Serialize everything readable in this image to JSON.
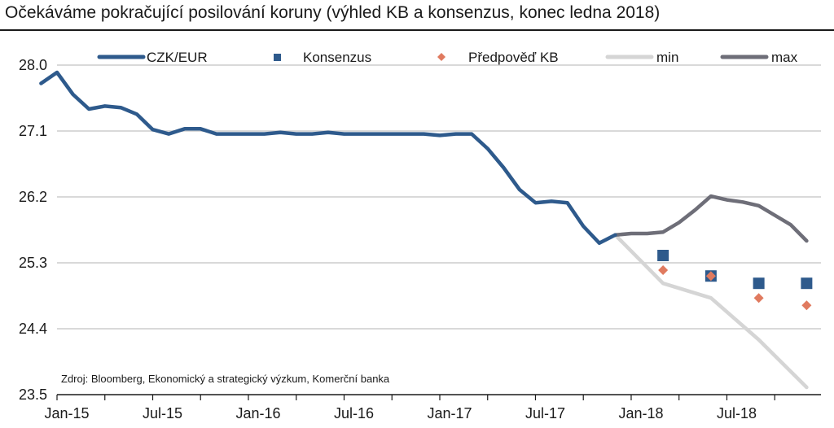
{
  "chart_data": {
    "type": "line",
    "title": "Očekáváme pokračující posilování koruny (výhled KB a konsenzus, konec ledna 2018)",
    "source": "Zdroj: Bloomberg, Ekonomický a strategický výzkum, Komerční banka",
    "xlabel": "",
    "ylabel": "",
    "ylim": [
      23.5,
      28.0
    ],
    "yticks": [
      "28.0",
      "27.1",
      "26.2",
      "25.3",
      "24.4",
      "23.5"
    ],
    "xticks": [
      "Jan-15",
      "Jul-15",
      "Jan-16",
      "Jul-16",
      "Jan-17",
      "Jul-17",
      "Jan-18",
      "Jul-18"
    ],
    "grid": true,
    "legend_position": "top",
    "colors": {
      "czk": "#2e5a8c",
      "konsenzus": "#2e5a8c",
      "predpoved": "#e07a5f",
      "min": "#d5d5d5",
      "max": "#6e6e78",
      "grid": "#d9d9d9"
    },
    "series": [
      {
        "name": "CZK/EUR",
        "style": "line",
        "x": [
          "2014-12",
          "2015-01",
          "2015-02",
          "2015-03",
          "2015-04",
          "2015-05",
          "2015-06",
          "2015-07",
          "2015-08",
          "2015-09",
          "2015-10",
          "2015-11",
          "2015-12",
          "2016-01",
          "2016-02",
          "2016-03",
          "2016-04",
          "2016-05",
          "2016-06",
          "2016-07",
          "2016-08",
          "2016-09",
          "2016-10",
          "2016-11",
          "2016-12",
          "2017-01",
          "2017-02",
          "2017-03",
          "2017-04",
          "2017-05",
          "2017-06",
          "2017-07",
          "2017-08",
          "2017-09",
          "2017-10",
          "2017-11",
          "2017-12"
        ],
        "values": [
          27.75,
          27.9,
          27.6,
          27.4,
          27.44,
          27.42,
          27.33,
          27.12,
          27.06,
          27.13,
          27.13,
          27.06,
          27.06,
          27.06,
          27.06,
          27.08,
          27.06,
          27.06,
          27.08,
          27.06,
          27.06,
          27.06,
          27.06,
          27.06,
          27.06,
          27.04,
          27.06,
          27.06,
          26.86,
          26.6,
          26.3,
          26.12,
          26.14,
          26.12,
          25.8,
          25.57,
          25.68
        ]
      },
      {
        "name": "Konsenzus",
        "style": "square",
        "x": [
          "2018-03",
          "2018-06",
          "2018-09",
          "2018-12"
        ],
        "values": [
          25.4,
          25.12,
          25.02,
          25.02
        ]
      },
      {
        "name": "Předpověď KB",
        "style": "diamond",
        "x": [
          "2018-03",
          "2018-06",
          "2018-09",
          "2018-12"
        ],
        "values": [
          25.2,
          25.12,
          24.82,
          24.72
        ]
      },
      {
        "name": "min",
        "style": "line",
        "x": [
          "2017-12",
          "2018-03",
          "2018-06",
          "2018-09",
          "2018-12"
        ],
        "values": [
          25.68,
          25.02,
          24.82,
          24.25,
          23.6
        ]
      },
      {
        "name": "max",
        "style": "line",
        "x": [
          "2017-12",
          "2018-01",
          "2018-02",
          "2018-03",
          "2018-04",
          "2018-05",
          "2018-06",
          "2018-07",
          "2018-08",
          "2018-09",
          "2018-10",
          "2018-11",
          "2018-12"
        ],
        "values": [
          25.68,
          25.7,
          25.7,
          25.72,
          25.85,
          26.02,
          26.21,
          26.16,
          26.13,
          26.08,
          25.95,
          25.82,
          25.6
        ]
      }
    ]
  }
}
